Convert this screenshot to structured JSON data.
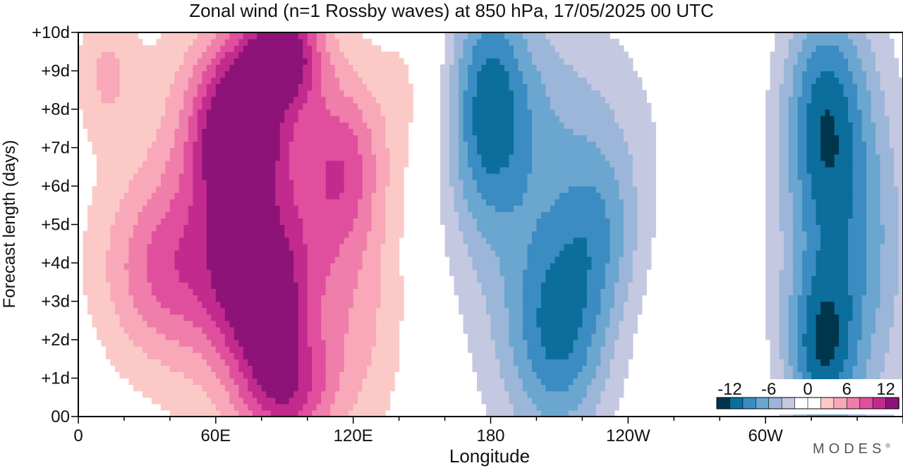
{
  "chart_data": {
    "type": "heatmap",
    "title": "Zonal wind (n=1 Rossby waves) at 850 hPa,  17/05/2025  00 UTC",
    "xlabel": "Longitude",
    "ylabel": "Forecast length (days)",
    "x_ticks": [
      {
        "lon": 0,
        "label": "0"
      },
      {
        "lon": 60,
        "label": "60E"
      },
      {
        "lon": 120,
        "label": "120E"
      },
      {
        "lon": 180,
        "label": "180"
      },
      {
        "lon": 240,
        "label": "120W"
      },
      {
        "lon": 300,
        "label": "60W"
      }
    ],
    "y_ticks": [
      {
        "day": 0,
        "label": "00"
      },
      {
        "day": 1,
        "label": "+1d"
      },
      {
        "day": 2,
        "label": "+2d"
      },
      {
        "day": 3,
        "label": "+3d"
      },
      {
        "day": 4,
        "label": "+4d"
      },
      {
        "day": 5,
        "label": "+5d"
      },
      {
        "day": 6,
        "label": "+6d"
      },
      {
        "day": 7,
        "label": "+7d"
      },
      {
        "day": 8,
        "label": "+8d"
      },
      {
        "day": 9,
        "label": "+9d"
      },
      {
        "day": 10,
        "label": "+10d"
      }
    ],
    "xlim": [
      0,
      360
    ],
    "ylim": [
      0,
      10
    ],
    "colorbar": {
      "labels": [
        "-12",
        "-6",
        "0",
        "6",
        "12"
      ],
      "levels": [
        -14,
        -12,
        -10,
        -8,
        -6,
        -4,
        -2,
        0,
        2,
        4,
        6,
        8,
        10,
        12,
        14
      ],
      "colors": [
        "#00364d",
        "#0b6e9c",
        "#3a8cc2",
        "#6aa6cf",
        "#9bb6d8",
        "#c4c8e0",
        "#ffffff",
        "#ffffff",
        "#fbcac7",
        "#f8a8b8",
        "#ef7eaa",
        "#e04f9e",
        "#c22b8d",
        "#8d1379"
      ]
    },
    "field": {
      "base": 0.2,
      "blobs": [
        {
          "lon": 70,
          "day": 7.5,
          "amp": 12.5,
          "slon": 14,
          "sday": 1.6
        },
        {
          "lon": 90,
          "day": 9.5,
          "amp": 11,
          "slon": 12,
          "sday": 1.0
        },
        {
          "lon": 80,
          "day": 3.2,
          "amp": 10.5,
          "slon": 14,
          "sday": 1.5
        },
        {
          "lon": 90,
          "day": 0.6,
          "amp": 8,
          "slon": 14,
          "sday": 1.1
        },
        {
          "lon": 115,
          "day": 6.6,
          "amp": 6.5,
          "slon": 13,
          "sday": 1.6
        },
        {
          "lon": 38,
          "day": 3.8,
          "amp": 5.5,
          "slon": 20,
          "sday": 1.6
        },
        {
          "lon": 70,
          "day": 5.2,
          "amp": 6,
          "slon": 34,
          "sday": 3.5
        },
        {
          "lon": 12,
          "day": 9.0,
          "amp": 3.5,
          "slon": 9,
          "sday": 1.2
        },
        {
          "lon": 120,
          "day": 2.5,
          "amp": 3.5,
          "slon": 18,
          "sday": 2.5
        },
        {
          "lon": 150,
          "day": 8.5,
          "amp": 2.5,
          "slon": 15,
          "sday": 1.8
        },
        {
          "lon": 178,
          "day": 8.2,
          "amp": -8.5,
          "slon": 13,
          "sday": 2.2
        },
        {
          "lon": 210,
          "day": 2.1,
          "amp": -8.5,
          "slon": 16,
          "sday": 2.0
        },
        {
          "lon": 228,
          "day": 4.8,
          "amp": -4.5,
          "slon": 13,
          "sday": 1.6
        },
        {
          "lon": 193,
          "day": 5.5,
          "amp": -3.5,
          "slon": 28,
          "sday": 4.5
        },
        {
          "lon": 218,
          "day": 7.5,
          "amp": -2.8,
          "slon": 32,
          "sday": 2.2
        },
        {
          "lon": 325,
          "day": 8.0,
          "amp": -8.5,
          "slon": 13,
          "sday": 2.2
        },
        {
          "lon": 324,
          "day": 1.6,
          "amp": -8,
          "slon": 11,
          "sday": 1.6
        },
        {
          "lon": 332,
          "day": 4.2,
          "amp": -5,
          "slon": 20,
          "sday": 2.8
        },
        {
          "lon": 342,
          "day": 5.0,
          "amp": -3,
          "slon": 18,
          "sday": 5.0
        }
      ]
    }
  },
  "brand": "MODES",
  "brand_mark": "®"
}
